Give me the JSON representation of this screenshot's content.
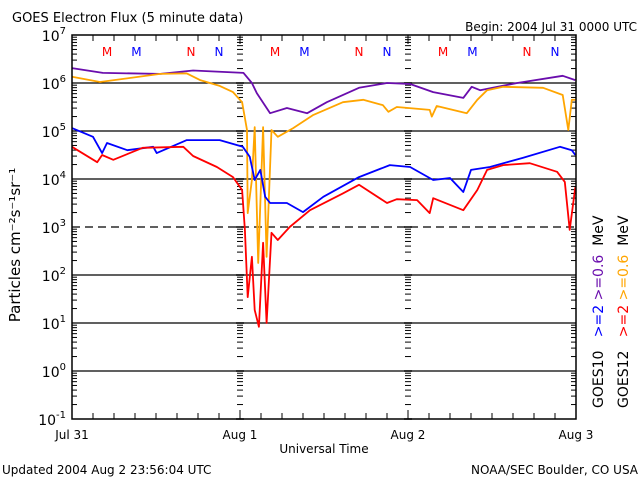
{
  "chart_data": {
    "type": "line",
    "title": "GOES Electron Flux (5 minute data)",
    "begin_label": "Begin: 2004 Jul 31 0000 UTC",
    "xlabel": "Universal Time",
    "ylabel": "Particles cm⁻²s⁻¹sr⁻¹",
    "y_scale": "log",
    "ylim_log10": [
      -1,
      7
    ],
    "xlim_hours": [
      0,
      72
    ],
    "x_ticks": [
      {
        "label": "Jul 31",
        "hour": 0
      },
      {
        "label": "Aug 1",
        "hour": 24
      },
      {
        "label": "Aug 2",
        "hour": 48
      },
      {
        "label": "Aug 3",
        "hour": 72
      }
    ],
    "y_ticks": [
      {
        "base": "10",
        "exp": "7"
      },
      {
        "base": "10",
        "exp": "6"
      },
      {
        "base": "10",
        "exp": "5"
      },
      {
        "base": "10",
        "exp": "4"
      },
      {
        "base": "10",
        "exp": "3"
      },
      {
        "base": "10",
        "exp": "2"
      },
      {
        "base": "10",
        "exp": "1"
      },
      {
        "base": "10",
        "exp": "0"
      },
      {
        "base": "10",
        "exp": "-1"
      }
    ],
    "threshold_log10": 3,
    "markers": [
      {
        "label": "M",
        "color": "#ff0000",
        "hour": 5
      },
      {
        "label": "M",
        "color": "#0000ff",
        "hour": 9.2
      },
      {
        "label": "N",
        "color": "#ff0000",
        "hour": 17
      },
      {
        "label": "N",
        "color": "#0000ff",
        "hour": 21
      },
      {
        "label": "M",
        "color": "#ff0000",
        "hour": 29
      },
      {
        "label": "M",
        "color": "#0000ff",
        "hour": 33.2
      },
      {
        "label": "N",
        "color": "#ff0000",
        "hour": 41
      },
      {
        "label": "N",
        "color": "#0000ff",
        "hour": 45
      },
      {
        "label": "M",
        "color": "#ff0000",
        "hour": 53
      },
      {
        "label": "M",
        "color": "#0000ff",
        "hour": 57.2
      },
      {
        "label": "N",
        "color": "#ff0000",
        "hour": 65
      },
      {
        "label": "N",
        "color": "#0000ff",
        "hour": 69
      }
    ],
    "legend": [
      {
        "satellite": "GOES10",
        "e2": ">=2",
        "e06": ">=0.6",
        "unit": "MeV",
        "e2_color": "#0000ff",
        "e06_color": "#6a0dad"
      },
      {
        "satellite": "GOES12",
        "e2": ">=2",
        "e06": ">=0.6",
        "unit": "MeV",
        "e2_color": "#ff0000",
        "e06_color": "#ffa500"
      }
    ],
    "series": [
      {
        "name": "GOES10 >=0.6 MeV",
        "color": "#6a0dad",
        "hours": [
          0,
          4.4,
          12.6,
          17.3,
          24.5,
          25.7,
          26.4,
          28.3,
          30.7,
          33.6,
          36.4,
          41,
          45,
          48.3,
          51.6,
          55.9,
          57.1,
          58.3,
          63.6,
          70.1,
          71.9
        ],
        "log10_flux": [
          6.31,
          6.21,
          6.19,
          6.26,
          6.21,
          6.0,
          5.79,
          5.37,
          5.48,
          5.37,
          5.6,
          5.9,
          6.0,
          5.98,
          5.81,
          5.69,
          5.92,
          5.85,
          6.0,
          6.15,
          6.06
        ]
      },
      {
        "name": "GOES12 >=0.6 MeV",
        "color": "#ffa500",
        "hours": [
          0,
          4,
          12.6,
          16.4,
          18.3,
          21.1,
          23,
          24.3,
          25,
          25.1,
          25.7,
          26.1,
          26.6,
          27.3,
          27.8,
          28.5,
          29.4,
          31.6,
          34.4,
          38.7,
          41.6,
          44.4,
          45.2,
          46.4,
          51.1,
          51.4,
          52.1,
          56.4,
          57.9,
          59.3,
          61.6,
          67.3,
          70.1,
          70.9,
          71.4,
          71.9
        ],
        "log10_flux": [
          6.13,
          6.02,
          6.19,
          6.2,
          6.06,
          5.94,
          5.81,
          5.6,
          5.02,
          3.29,
          3.98,
          5.08,
          2.25,
          5.08,
          2.38,
          5.02,
          4.88,
          5.06,
          5.33,
          5.6,
          5.65,
          5.54,
          5.4,
          5.5,
          5.44,
          5.3,
          5.52,
          5.37,
          5.65,
          5.85,
          5.92,
          5.9,
          5.75,
          5.02,
          5.65,
          5.65
        ]
      },
      {
        "name": "GOES10 >=2 MeV",
        "color": "#0000ff",
        "hours": [
          0,
          3,
          4.3,
          5,
          7.9,
          11.6,
          12.1,
          16.4,
          21.1,
          24.4,
          25.4,
          26.1,
          26.9,
          27.6,
          28.3,
          30.7,
          33,
          35.9,
          41,
          45.4,
          48.3,
          51.6,
          54,
          55.9,
          57,
          59.7,
          64.4,
          69.7,
          71.4,
          71.9
        ],
        "log10_flux": [
          5.06,
          4.88,
          4.54,
          4.75,
          4.6,
          4.67,
          4.54,
          4.81,
          4.81,
          4.67,
          4.46,
          3.98,
          4.19,
          3.63,
          3.5,
          3.5,
          3.31,
          3.63,
          4.04,
          4.29,
          4.25,
          3.98,
          4.02,
          3.73,
          4.19,
          4.25,
          4.44,
          4.67,
          4.6,
          4.5
        ]
      },
      {
        "name": "GOES12 >=2 MeV",
        "color": "#ff0000",
        "hours": [
          0,
          3.6,
          4.3,
          5.9,
          10.1,
          15.9,
          17.3,
          20.7,
          23,
          24.3,
          24.7,
          25.1,
          25.7,
          26.1,
          26.7,
          27.3,
          27.8,
          28.5,
          29.4,
          31.1,
          34,
          38.7,
          41,
          45,
          46.4,
          49.3,
          51.1,
          51.6,
          55.9,
          57.9,
          59.3,
          61.6,
          65.4,
          69.3,
          70.4,
          71.1,
          71.9
        ],
        "log10_flux": [
          4.67,
          4.35,
          4.5,
          4.4,
          4.65,
          4.67,
          4.48,
          4.25,
          4.04,
          3.77,
          2.94,
          1.54,
          2.38,
          1.27,
          0.92,
          2.67,
          1.0,
          2.88,
          2.73,
          3.0,
          3.35,
          3.7,
          3.88,
          3.5,
          3.58,
          3.56,
          3.29,
          3.6,
          3.35,
          3.77,
          4.19,
          4.29,
          4.33,
          4.15,
          3.94,
          2.94,
          3.83
        ]
      }
    ]
  },
  "footer": {
    "updated": "Updated 2004 Aug  2 23:56:04 UTC",
    "credit": "NOAA/SEC Boulder, CO USA"
  }
}
